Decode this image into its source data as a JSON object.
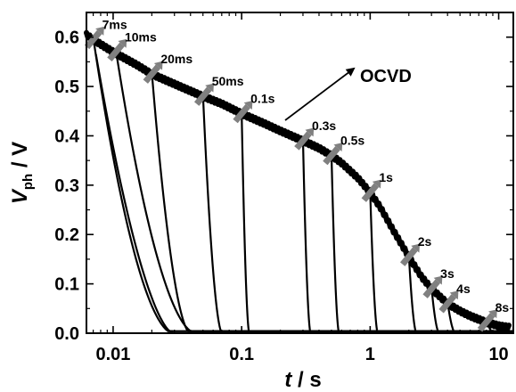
{
  "chart_data": {
    "type": "line",
    "xlabel": {
      "var": "t",
      "unit": " / s"
    },
    "ylabel": {
      "var": "V",
      "sub": "ph",
      "unit": " / V"
    },
    "xscale": "log",
    "xlim": [
      0.0062,
      13
    ],
    "ylim": [
      0,
      0.65
    ],
    "xticks": [
      0.01,
      0.1,
      1,
      10
    ],
    "xtick_labels": [
      "0.01",
      "0.1",
      "1",
      "10"
    ],
    "yticks": [
      0.0,
      0.1,
      0.2,
      0.3,
      0.4,
      0.5,
      0.6
    ],
    "ytick_labels": [
      "0.0",
      "0.1",
      "0.2",
      "0.3",
      "0.4",
      "0.5",
      "0.6"
    ],
    "ocvd_series": {
      "label": "OCVD",
      "x": [
        0.0062,
        0.007,
        0.01,
        0.015,
        0.02,
        0.03,
        0.05,
        0.07,
        0.1,
        0.15,
        0.2,
        0.3,
        0.4,
        0.5,
        0.6,
        0.8,
        1,
        1.2,
        1.5,
        2,
        2.5,
        3,
        4,
        5,
        6,
        8,
        10,
        12
      ],
      "y": [
        0.605,
        0.595,
        0.57,
        0.545,
        0.525,
        0.505,
        0.48,
        0.465,
        0.445,
        0.425,
        0.41,
        0.39,
        0.375,
        0.36,
        0.345,
        0.315,
        0.285,
        0.255,
        0.21,
        0.155,
        0.115,
        0.09,
        0.06,
        0.045,
        0.035,
        0.022,
        0.015,
        0.012
      ]
    },
    "pulses": [
      {
        "label": "7ms",
        "t": 0.007,
        "v": 0.595
      },
      {
        "label": "10ms",
        "t": 0.0105,
        "v": 0.57
      },
      {
        "label": "20ms",
        "t": 0.02,
        "v": 0.525
      },
      {
        "label": "50ms",
        "t": 0.05,
        "v": 0.48
      },
      {
        "label": "0.1s",
        "t": 0.1,
        "v": 0.445
      },
      {
        "label": "0.3s",
        "t": 0.3,
        "v": 0.39
      },
      {
        "label": "0.5s",
        "t": 0.5,
        "v": 0.36
      },
      {
        "label": "1s",
        "t": 1,
        "v": 0.285
      },
      {
        "label": "2s",
        "t": 2,
        "v": 0.155
      },
      {
        "label": "3s",
        "t": 3,
        "v": 0.09
      },
      {
        "label": "4s",
        "t": 4,
        "v": 0.06
      },
      {
        "label": "8s",
        "t": 8,
        "v": 0.022
      }
    ],
    "annotation": "OCVD"
  }
}
